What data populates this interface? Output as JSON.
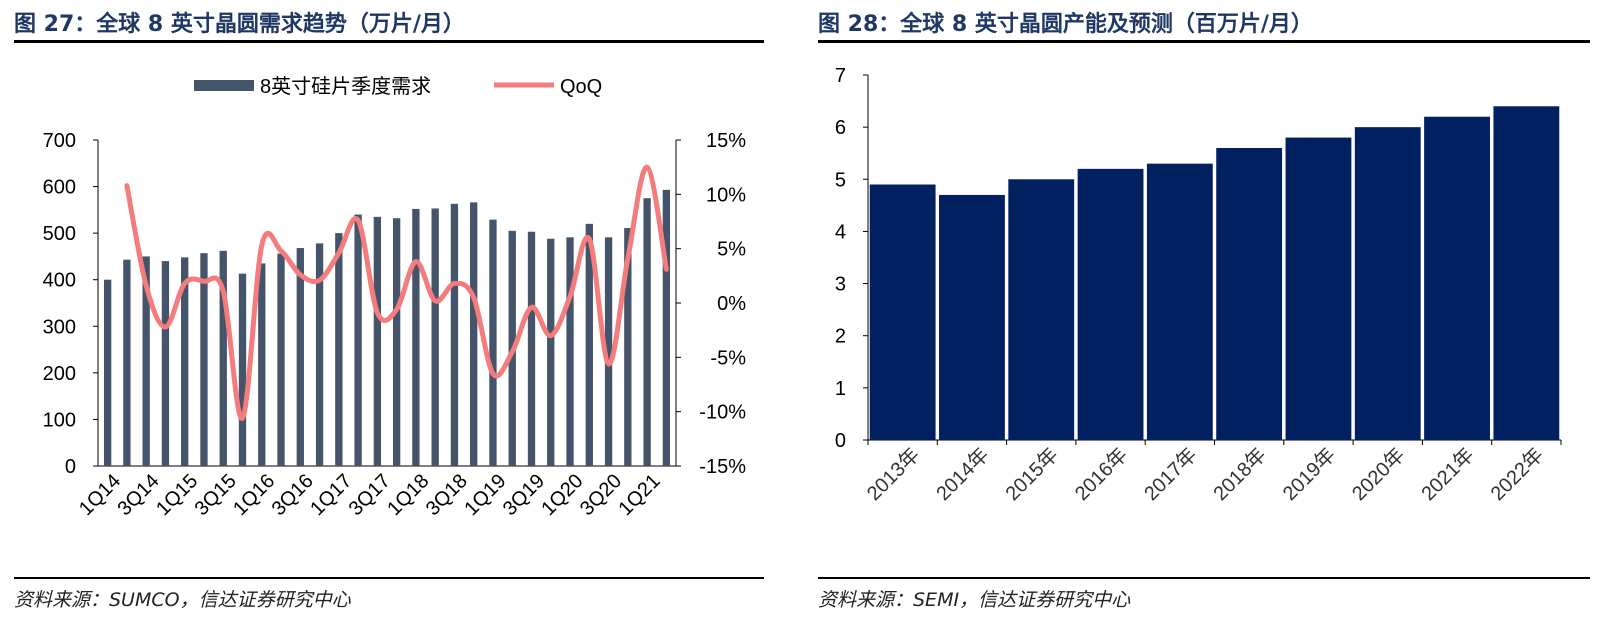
{
  "left": {
    "title": "图 27：全球 8 英寸晶圆需求趋势（万片/月）",
    "source": "资料来源：SUMCO，信达证券研究中心",
    "chart_data": {
      "type": "bar+line",
      "legend": [
        "8英寸硅片季度需求",
        "QoQ"
      ],
      "legend_position": "top",
      "categories": [
        "1Q14",
        "2Q14",
        "3Q14",
        "4Q14",
        "1Q15",
        "2Q15",
        "3Q15",
        "4Q15",
        "1Q16",
        "2Q16",
        "3Q16",
        "4Q16",
        "1Q17",
        "2Q17",
        "3Q17",
        "4Q17",
        "1Q18",
        "2Q18",
        "3Q18",
        "4Q18",
        "1Q19",
        "2Q19",
        "3Q19",
        "4Q19",
        "1Q20",
        "2Q20",
        "3Q20",
        "4Q20",
        "1Q21",
        "2Q21"
      ],
      "xtick_labels": [
        "1Q14",
        "3Q14",
        "1Q15",
        "3Q15",
        "1Q16",
        "3Q16",
        "1Q17",
        "3Q17",
        "1Q18",
        "3Q18",
        "1Q19",
        "3Q19",
        "1Q20",
        "3Q20",
        "1Q21"
      ],
      "series": [
        {
          "name": "8英寸硅片季度需求",
          "axis": "left",
          "color": "#44546a",
          "values": [
            400,
            443,
            450,
            440,
            448,
            457,
            462,
            413,
            435,
            456,
            468,
            478,
            500,
            540,
            535,
            532,
            552,
            553,
            563,
            566,
            529,
            505,
            503,
            488,
            491,
            520,
            491,
            511,
            575,
            593
          ]
        },
        {
          "name": "QoQ",
          "axis": "right",
          "color": "#f47c7c",
          "values": [
            null,
            10.8,
            1.6,
            -2.2,
            1.8,
            2.0,
            1.1,
            -10.6,
            5.3,
            4.8,
            2.6,
            2.1,
            4.6,
            7.6,
            -0.9,
            -0.6,
            3.8,
            0.2,
            1.8,
            0.5,
            -6.5,
            -4.5,
            -0.4,
            -3.0,
            0.6,
            5.9,
            -5.6,
            4.1,
            12.5,
            3.1
          ]
        }
      ],
      "ylim_left": [
        0,
        700
      ],
      "yticks_left": [
        "0",
        "100",
        "200",
        "300",
        "400",
        "500",
        "600",
        "700"
      ],
      "ylim_right": [
        -15,
        15
      ],
      "yticks_right": [
        "-15%",
        "-10%",
        "-5%",
        "0%",
        "5%",
        "10%",
        "15%"
      ]
    }
  },
  "right": {
    "title": "图 28：全球 8 英寸晶圆产能及预测（百万片/月）",
    "source": "资料来源：SEMI，信达证券研究中心",
    "chart_data": {
      "type": "bar",
      "categories": [
        "2013年",
        "2014年",
        "2015年",
        "2016年",
        "2017年",
        "2018年",
        "2019年",
        "2020年",
        "2021年",
        "2022年"
      ],
      "values": [
        4.9,
        4.7,
        5.0,
        5.2,
        5.3,
        5.6,
        5.8,
        6.0,
        6.2,
        6.4
      ],
      "color": "#002060",
      "ylim": [
        0,
        7
      ],
      "yticks": [
        "0",
        "1",
        "2",
        "3",
        "4",
        "5",
        "6",
        "7"
      ]
    }
  }
}
